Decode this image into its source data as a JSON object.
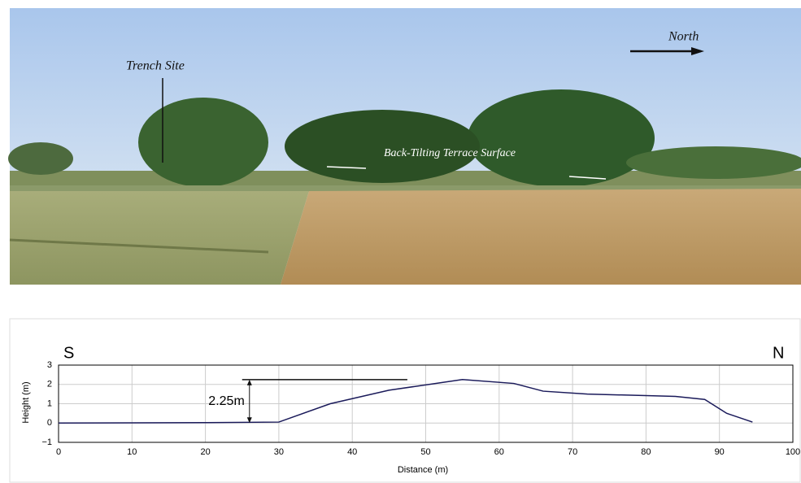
{
  "photo": {
    "labels": {
      "trench_site": "Trench Site",
      "north": "North",
      "terrace": "Back-Tilting Terrace Surface"
    }
  },
  "chart_data": {
    "type": "line",
    "xlabel": "Distance (m)",
    "ylabel": "Height (m)",
    "annotations": {
      "south": "S",
      "north": "N"
    },
    "reference_line": {
      "value": 2.25,
      "label": "2.25m"
    },
    "x": [
      0,
      20,
      30,
      37,
      45,
      55,
      62,
      66,
      72,
      80,
      84,
      88,
      91,
      94.5
    ],
    "series": [
      {
        "color": "#1a1a5a",
        "values": [
          0,
          0.02,
          0.05,
          1.0,
          1.7,
          2.25,
          2.05,
          1.65,
          1.5,
          1.42,
          1.38,
          1.22,
          0.5,
          0.05
        ]
      }
    ],
    "xlim": [
      0,
      100
    ],
    "ylim": [
      -1,
      3
    ],
    "xticks": [
      0,
      10,
      20,
      30,
      40,
      50,
      60,
      70,
      80,
      90,
      100
    ],
    "yticks": [
      {
        "value": -1,
        "label": "−1"
      },
      0,
      1,
      2,
      3
    ],
    "grid": true
  }
}
